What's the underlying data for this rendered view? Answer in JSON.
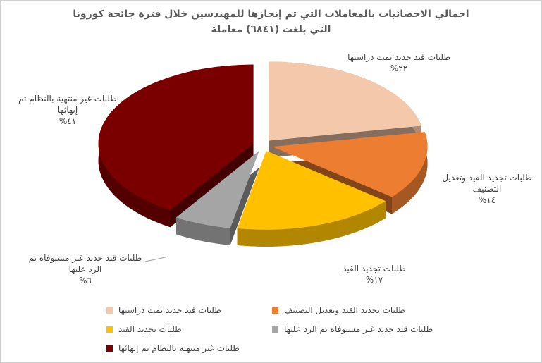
{
  "chart_data": {
    "type": "pie3d",
    "title": "اجمالي الاحصائيات  بالمعاملات التي تم إنجازها  للمهندسين خلال فترة جائحة كورونا",
    "subtitle": "التي بلغت  (٦٨٤١) معاملة",
    "categories": [
      "طلبات قيد جديد تمت دراستها",
      "طلبات تجديد القيد وتعديل التصنيف",
      "طلبات تجديد القيد",
      "طلبات قيد جديد غير مستوفاه تم الرد عليها",
      "طلبات غير منتهية بالنظام تم إنهائها"
    ],
    "values": [
      22,
      14,
      17,
      6,
      41
    ],
    "value_labels": [
      "٢٢%",
      "١٤%",
      "١٧%",
      "٦%",
      "٤١%"
    ],
    "colors": [
      "#f4c8aa",
      "#ed7d31",
      "#ffc000",
      "#a5a5a5",
      "#7a0000"
    ],
    "legend": "bottom"
  }
}
